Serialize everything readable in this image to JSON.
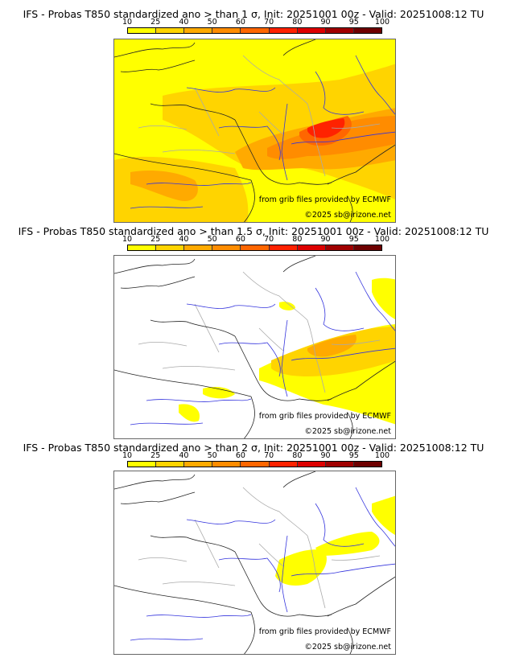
{
  "colorbar": {
    "ticks": [
      "10",
      "25",
      "40",
      "50",
      "60",
      "70",
      "80",
      "90",
      "95",
      "100"
    ],
    "colors": [
      "#ffff00",
      "#ffd400",
      "#ffaa00",
      "#ff8c00",
      "#ff6600",
      "#ff2200",
      "#dd0000",
      "#a00000",
      "#6e0000"
    ]
  },
  "map_colors": {
    "river": "#3333dd",
    "border": "#aaaaaa",
    "coast": "#222222"
  },
  "panels": [
    {
      "title": "IFS - Probas T850  standardized ano > than 1 σ, Init: 20251001 00z - Valid: 20251008:12 TU",
      "threshold_sigma": "1",
      "source": "from grib files provided by ECMWF",
      "copyright": "©2025 sb@irizone.net"
    },
    {
      "title": "IFS - Probas T850  standardized ano > than 1.5 σ, Init: 20251001 00z - Valid: 20251008:12 TU",
      "threshold_sigma": "1.5",
      "source": "from grib files provided by ECMWF",
      "copyright": "©2025 sb@irizone.net"
    },
    {
      "title": "IFS - Probas T850  standardized ano > than 2 σ, Init: 20251001 00z - Valid: 20251008:12 TU",
      "threshold_sigma": "2",
      "source": "from grib files provided by ECMWF",
      "copyright": "©2025 sb@irizone.net"
    }
  ]
}
